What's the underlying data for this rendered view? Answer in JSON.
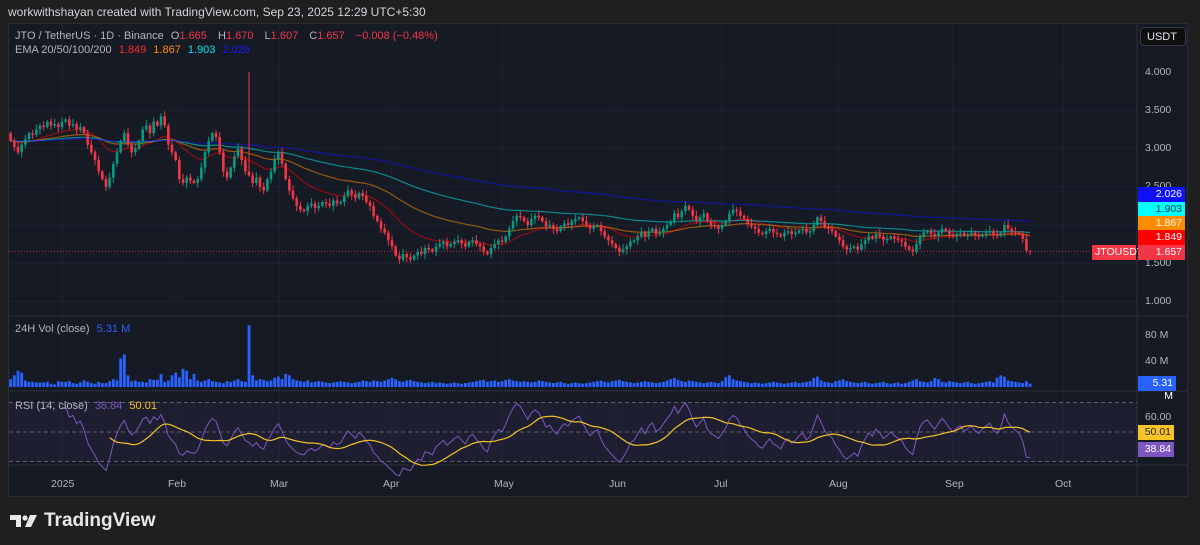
{
  "header": {
    "title": "workwithshayan created with TradingView.com, Sep 23, 2025 12:29 UTC+5:30"
  },
  "legend": {
    "symbol": "JTO / TetherUS · 1D · Binance",
    "o_label": "O",
    "o": "1.665",
    "h_label": "H",
    "h": "1.670",
    "l_label": "L",
    "l": "1.607",
    "c_label": "C",
    "c": "1.657",
    "change": "−0.008 (−0.48%)",
    "ema_label": "EMA 20/50/100/200",
    "ema20": "1.849",
    "ema50": "1.867",
    "ema100": "1.903",
    "ema200": "2.026",
    "vol_label": "24H Vol (close)",
    "vol": "5.31 M",
    "rsi_label": "RSI (14, close)",
    "rsi": "38.84",
    "rsi_ma": "50.01"
  },
  "currency_button": "USDT",
  "price_axis": [
    "4.000",
    "3.500",
    "3.000",
    "2.500",
    "1.500",
    "1.000"
  ],
  "price_badges": {
    "symbol": "JTOUSDT",
    "last": "1.657",
    "ema20": "1.849",
    "ema50": "1.867",
    "ema100": "1.903",
    "ema200": "2.026"
  },
  "vol_axis": [
    "80 M",
    "40 M"
  ],
  "vol_badge": "5.31 M",
  "rsi_axis": [
    "60.00"
  ],
  "rsi_badges": {
    "ma": "50.01",
    "rsi": "38.84"
  },
  "time_axis": [
    "2025",
    "Feb",
    "Mar",
    "Apr",
    "May",
    "Jun",
    "Jul",
    "Aug",
    "Sep",
    "Oct"
  ],
  "logo": "TradingView",
  "colors": {
    "up": "#089981",
    "down": "#f23645",
    "ema20": "#ff0000",
    "ema50": "#ff8c00",
    "ema100": "#00e5e5",
    "ema200": "#1010ff",
    "volume": "#2962ff",
    "rsi": "#7e57c2",
    "rsi_ma": "#f7c325",
    "last_price": "#f23645"
  },
  "chart_data": {
    "type": "candlestick",
    "symbol": "JTO / TetherUS",
    "interval": "1D",
    "first_date": "2024-12-18",
    "last_date": "2025-09-22",
    "ylim": [
      0.85,
      4.3
    ],
    "first_open": 3.2,
    "closes": [
      3.1,
      3.02,
      2.95,
      3.05,
      3.12,
      3.2,
      3.18,
      3.25,
      3.3,
      3.28,
      3.35,
      3.3,
      3.32,
      3.28,
      3.35,
      3.38,
      3.3,
      3.32,
      3.25,
      3.28,
      3.2,
      3.05,
      2.95,
      2.85,
      2.7,
      2.6,
      2.5,
      2.62,
      2.8,
      2.95,
      3.1,
      3.2,
      3.05,
      2.95,
      3.0,
      3.1,
      3.25,
      3.3,
      3.2,
      3.35,
      3.3,
      3.42,
      3.3,
      3.05,
      2.95,
      2.85,
      2.6,
      2.55,
      2.62,
      2.58,
      2.55,
      2.6,
      2.75,
      2.95,
      3.1,
      3.2,
      3.15,
      2.95,
      2.7,
      2.62,
      2.75,
      2.9,
      3.0,
      2.85,
      2.7,
      2.65,
      2.55,
      2.62,
      2.5,
      2.45,
      2.6,
      2.7,
      2.85,
      2.95,
      2.8,
      2.6,
      2.45,
      2.35,
      2.25,
      2.2,
      2.18,
      2.25,
      2.28,
      2.22,
      2.25,
      2.3,
      2.28,
      2.25,
      2.32,
      2.28,
      2.3,
      2.38,
      2.45,
      2.4,
      2.35,
      2.42,
      2.38,
      2.3,
      2.25,
      2.12,
      2.05,
      1.95,
      1.9,
      1.8,
      1.72,
      1.6,
      1.55,
      1.62,
      1.58,
      1.55,
      1.6,
      1.65,
      1.62,
      1.7,
      1.68,
      1.65,
      1.72,
      1.75,
      1.78,
      1.72,
      1.75,
      1.78,
      1.8,
      1.76,
      1.72,
      1.78,
      1.8,
      1.75,
      1.72,
      1.65,
      1.62,
      1.7,
      1.75,
      1.8,
      1.78,
      1.85,
      1.95,
      2.05,
      2.12,
      2.1,
      2.05,
      2.0,
      2.08,
      2.12,
      2.1,
      2.05,
      1.98,
      2.0,
      1.95,
      1.92,
      1.98,
      2.02,
      2.0,
      2.05,
      2.08,
      2.1,
      2.05,
      2.0,
      1.95,
      1.98,
      2.0,
      1.92,
      1.85,
      1.8,
      1.75,
      1.7,
      1.65,
      1.68,
      1.72,
      1.78,
      1.8,
      1.85,
      1.9,
      1.85,
      1.92,
      1.95,
      1.88,
      1.9,
      1.95,
      2.0,
      2.05,
      2.15,
      2.1,
      2.18,
      2.25,
      2.2,
      2.12,
      2.05,
      2.1,
      2.15,
      2.05,
      2.0,
      1.98,
      1.95,
      2.0,
      2.05,
      2.15,
      2.2,
      2.18,
      2.12,
      2.08,
      2.02,
      1.98,
      1.95,
      1.9,
      1.88,
      1.92,
      1.95,
      1.9,
      1.88,
      1.85,
      1.9,
      1.92,
      1.88,
      1.9,
      1.93,
      1.95,
      1.9,
      1.92,
      2.0,
      2.1,
      2.05,
      1.98,
      1.95,
      1.92,
      1.85,
      1.8,
      1.72,
      1.68,
      1.7,
      1.72,
      1.68,
      1.75,
      1.8,
      1.85,
      1.82,
      1.88,
      1.85,
      1.8,
      1.82,
      1.85,
      1.82,
      1.8,
      1.78,
      1.72,
      1.68,
      1.65,
      1.75,
      1.85,
      1.9,
      1.92,
      1.88,
      1.85,
      1.9,
      1.95,
      1.92,
      1.88,
      1.85,
      1.88,
      1.9,
      1.86,
      1.88,
      1.9,
      1.87,
      1.85,
      1.88,
      1.9,
      1.92,
      1.88,
      1.86,
      1.9,
      2.0,
      1.95,
      1.92,
      1.9,
      1.88,
      1.82,
      1.665,
      1.657
    ],
    "wick_highs": {
      "2025-02-21": 4.0
    },
    "last_candle": {
      "open": 1.665,
      "high": 1.67,
      "low": 1.607,
      "close": 1.657
    },
    "volume_unit": "M",
    "volume_ylim": [
      0,
      100
    ],
    "volume": [
      12,
      18,
      25,
      22,
      10,
      8,
      8,
      7,
      7,
      7,
      8,
      5,
      4,
      9,
      8,
      8,
      9,
      6,
      5,
      7,
      10,
      8,
      6,
      5,
      8,
      6,
      6,
      9,
      12,
      10,
      44,
      50,
      18,
      9,
      10,
      8,
      8,
      7,
      12,
      11,
      11,
      20,
      8,
      10,
      18,
      22,
      15,
      28,
      25,
      12,
      20,
      10,
      8,
      10,
      12,
      9,
      8,
      7,
      6,
      9,
      8,
      10,
      12,
      9,
      8,
      95,
      18,
      10,
      12,
      11,
      9,
      10,
      14,
      16,
      12,
      20,
      18,
      12,
      10,
      9,
      8,
      10,
      7,
      8,
      9,
      8,
      7,
      6,
      7,
      8,
      9,
      8,
      7,
      6,
      7,
      8,
      10,
      9,
      8,
      10,
      9,
      8,
      10,
      12,
      14,
      12,
      9,
      8,
      10,
      11,
      9,
      8,
      7,
      6,
      7,
      8,
      6,
      7,
      6,
      5,
      6,
      7,
      6,
      5,
      6,
      7,
      8,
      9,
      10,
      11,
      8,
      9,
      10,
      8,
      9,
      11,
      12,
      10,
      9,
      8,
      9,
      8,
      7,
      8,
      10,
      9,
      8,
      7,
      6,
      7,
      8,
      6,
      5,
      6,
      7,
      6,
      5,
      6,
      7,
      8,
      9,
      10,
      8,
      7,
      9,
      10,
      11,
      9,
      8,
      7,
      6,
      7,
      8,
      9,
      8,
      7,
      6,
      7,
      8,
      10,
      12,
      14,
      11,
      9,
      8,
      10,
      9,
      8,
      7,
      6,
      7,
      8,
      7,
      6,
      9,
      15,
      18,
      12,
      10,
      9,
      8,
      7,
      6,
      7,
      6,
      5,
      6,
      7,
      8,
      7,
      6,
      5,
      6,
      7,
      8,
      6,
      7,
      8,
      9,
      14,
      16,
      10,
      8,
      7,
      6,
      9,
      10,
      12,
      9,
      8,
      7,
      6,
      7,
      8,
      6,
      5,
      6,
      7,
      8,
      6,
      5,
      6,
      7,
      5,
      6,
      8,
      10,
      12,
      9,
      8,
      7,
      9,
      14,
      12,
      8,
      7,
      9,
      8,
      7,
      6,
      7,
      8,
      6,
      5,
      6,
      7,
      8,
      9,
      7,
      14,
      18,
      16,
      10,
      9,
      8,
      7,
      6,
      9,
      5.31
    ],
    "ema_periods": [
      20,
      50,
      100,
      200
    ],
    "rsi_period": 14,
    "rsi_bands": [
      70,
      50,
      30
    ]
  }
}
